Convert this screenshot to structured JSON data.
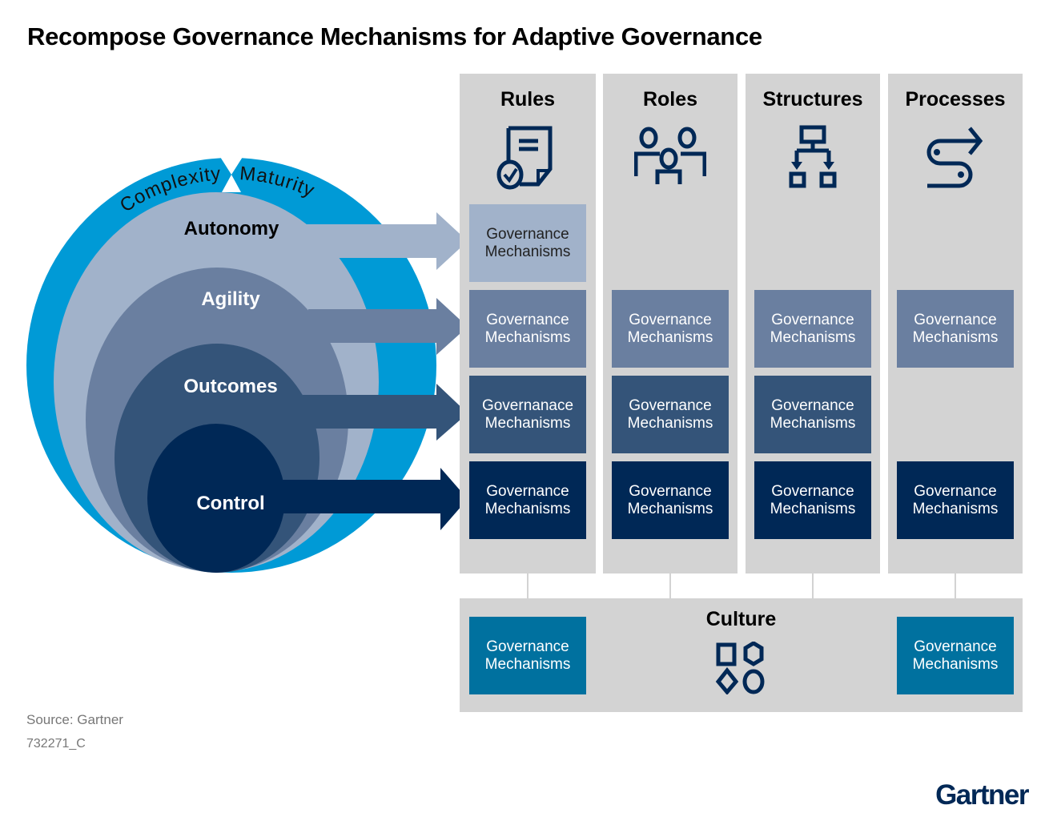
{
  "title": "Recompose Governance Mechanisms for Adaptive Governance",
  "colors": {
    "outer_ring": "#009ad6",
    "autonomy": "#a1b2ca",
    "agility": "#6a7fa0",
    "outcomes": "#345479",
    "control": "#002856",
    "culture_box": "#00719f",
    "panel": "#d3d3d3"
  },
  "ring_labels": {
    "left": "Complexity",
    "right": "Maturity"
  },
  "levels": [
    {
      "label": "Autonomy"
    },
    {
      "label": "Agility"
    },
    {
      "label": "Outcomes"
    },
    {
      "label": "Control"
    }
  ],
  "columns": [
    {
      "label": "Rules",
      "icon": "document-check-icon",
      "cells": [
        "Governance Mechanisms",
        "Governance Mechanisms",
        "Governanace Mechanisms",
        "Governance Mechanisms"
      ]
    },
    {
      "label": "Roles",
      "icon": "people-icon",
      "cells": [
        null,
        "Governance Mechanisms",
        "Governance Mechanisms",
        "Governance Mechanisms"
      ]
    },
    {
      "label": "Structures",
      "icon": "org-chart-icon",
      "cells": [
        null,
        "Governance Mechanisms",
        "Governance Mechanisms",
        "Governance Mechanisms"
      ]
    },
    {
      "label": "Processes",
      "icon": "process-path-icon",
      "cells": [
        null,
        "Governance Mechanisms",
        null,
        "Governance Mechanisms"
      ]
    }
  ],
  "culture": {
    "label": "Culture",
    "icon": "shapes-icon",
    "left_box": "Governance Mechanisms",
    "right_box": "Governance Mechanisms"
  },
  "source": "Source: Gartner",
  "doc_id": "732271_C",
  "logo": "Gartner"
}
